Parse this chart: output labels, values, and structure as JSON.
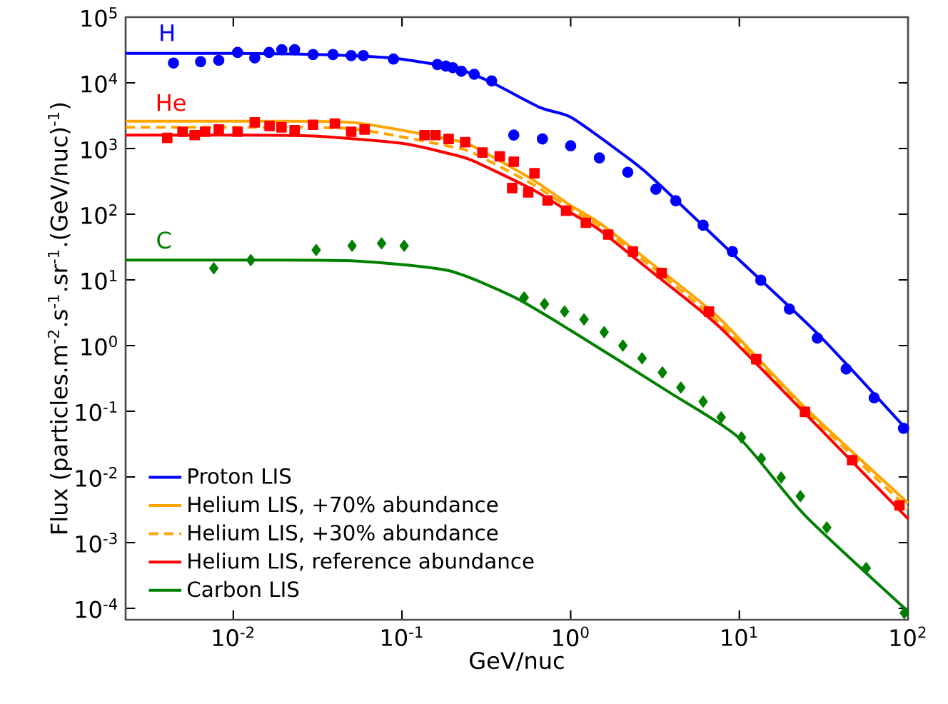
{
  "chart_data": {
    "type": "line",
    "xlabel": "GeV/nuc",
    "ylabel": "Flux (particles.m$^{-2}$.s$^{-1}$.sr$^{-1}$.(GeV/nuc)$^{-1}$)",
    "log": "xy",
    "xlim": [
      0.0023,
      100
    ],
    "ylim": [
      6.7e-05,
      100000
    ],
    "xticks": [
      {
        "value": 0.01,
        "label": "10$^{-2}$"
      },
      {
        "value": 0.1,
        "label": "10$^{-1}$"
      },
      {
        "value": 1,
        "label": "10$^{0}$"
      },
      {
        "value": 10,
        "label": "10$^{1}$"
      },
      {
        "value": 100,
        "label": "10$^{2}$"
      }
    ],
    "yticks": [
      {
        "value": 0.0001,
        "label": "10$^{-4}$"
      },
      {
        "value": 0.001,
        "label": "10$^{-3}$"
      },
      {
        "value": 0.01,
        "label": "10$^{-2}$"
      },
      {
        "value": 0.1,
        "label": "10$^{-1}$"
      },
      {
        "value": 1,
        "label": "10$^{0}$"
      },
      {
        "value": 10,
        "label": "10$^{1}$"
      },
      {
        "value": 100,
        "label": "10$^{2}$"
      },
      {
        "value": 1000,
        "label": "10$^{3}$"
      },
      {
        "value": 10000,
        "label": "10$^{4}$"
      },
      {
        "value": 100000,
        "label": "10$^{5}$"
      }
    ],
    "legend": "bottom left",
    "annotations": [
      "H",
      "He",
      "C"
    ],
    "series": [
      {
        "name": "Proton LIS",
        "color": "#0000ff",
        "marker": "none",
        "line_style": "solid",
        "x": [
          0.0023,
          0.01,
          0.03,
          0.085,
          0.2,
          0.33,
          0.66,
          1,
          2,
          3,
          10,
          30,
          100
        ],
        "values": [
          28000,
          28000,
          27000,
          24000,
          17000,
          10500,
          4200,
          3000,
          850,
          370,
          20,
          1.4,
          0.05
        ]
      },
      {
        "name": "Helium LIS, +70% abundance",
        "color": "#ffa500",
        "marker": "none",
        "line_style": "solid",
        "x": [
          0.0023,
          0.01,
          0.05,
          0.185,
          0.26,
          0.59,
          1,
          1.48,
          3,
          7.5,
          24,
          100
        ],
        "values": [
          2600,
          2600,
          2500,
          1400,
          1100,
          340,
          135,
          74,
          18,
          2.7,
          0.12,
          0.004
        ]
      },
      {
        "name": "Helium LIS, +30% abundance",
        "color": "#ffa500",
        "marker": "none",
        "line_style": "dashed",
        "x": [
          0.0023,
          0.01,
          0.05,
          0.185,
          0.26,
          0.59,
          1,
          1.48,
          3,
          7.5,
          24,
          100
        ],
        "values": [
          2100,
          2100,
          2000,
          1100,
          870,
          290,
          120,
          66,
          16,
          2.3,
          0.11,
          0.0033
        ]
      },
      {
        "name": "Helium LIS, reference abundance",
        "color": "#ff0000",
        "marker": "none",
        "line_style": "solid",
        "x": [
          0.0023,
          0.01,
          0.03,
          0.1,
          0.185,
          0.26,
          0.59,
          1,
          1.48,
          3,
          7.5,
          24,
          100
        ],
        "values": [
          1600,
          1600,
          1550,
          1200,
          850,
          660,
          240,
          105,
          58,
          13.5,
          2.0,
          0.098,
          0.0023
        ]
      },
      {
        "name": "Carbon LIS",
        "color": "#008000",
        "marker": "none",
        "line_style": "solid",
        "x": [
          0.0023,
          0.01,
          0.05,
          0.185,
          0.46,
          1,
          3.9,
          10,
          24.5,
          100
        ],
        "values": [
          20,
          20,
          19.5,
          14,
          5.5,
          1.7,
          0.19,
          0.039,
          0.0026,
          9e-05
        ]
      },
      {
        "color": "#0000ff",
        "type": "scatter",
        "marker": "circle",
        "x": [
          0.00442,
          0.0064,
          0.0082,
          0.0106,
          0.0134,
          0.0163,
          0.0194,
          0.0231,
          0.0297,
          0.039,
          0.05,
          0.059,
          0.089,
          0.162,
          0.182,
          0.2,
          0.225,
          0.268,
          0.34
        ],
        "values": [
          20000,
          21000,
          22000,
          29000,
          24000,
          29000,
          32000,
          32000,
          27000,
          27000,
          26000,
          26000,
          23000,
          19000,
          18000,
          17000,
          15000,
          13500,
          10700
        ]
      },
      {
        "color": "#0000ff",
        "type": "scatter",
        "marker": "circle",
        "x": [
          0.46,
          0.68,
          1.0,
          1.48,
          2.18,
          3.2,
          4.2,
          6.1,
          9.1,
          13.4,
          19.8,
          29,
          43,
          63,
          94
        ],
        "values": [
          1600,
          1400,
          1100,
          720,
          435,
          240,
          160,
          68,
          27,
          9.9,
          3.6,
          1.3,
          0.44,
          0.16,
          0.055
        ]
      },
      {
        "color": "#ff0000",
        "type": "scatter",
        "marker": "square",
        "x": [
          0.00406,
          0.005,
          0.0059,
          0.0068,
          0.0082,
          0.0106,
          0.0134,
          0.0164,
          0.0193,
          0.0231,
          0.0297,
          0.04,
          0.05,
          0.06,
          0.136,
          0.158,
          0.189,
          0.237,
          0.3,
          0.38,
          0.46,
          0.61
        ],
        "values": [
          1450,
          1800,
          1600,
          1800,
          1950,
          1800,
          2500,
          2200,
          2100,
          1900,
          2300,
          2400,
          1800,
          1950,
          1600,
          1600,
          1400,
          1250,
          870,
          760,
          630,
          420
        ]
      },
      {
        "color": "#ff0000",
        "type": "scatter",
        "marker": "square",
        "x": [
          0.45,
          0.56,
          0.73,
          0.94,
          1.23,
          1.67,
          2.34,
          3.46,
          6.6,
          12.6,
          24.5,
          46.6,
          89
        ],
        "values": [
          250,
          215,
          162,
          113,
          74,
          49,
          27,
          12.7,
          3.3,
          0.62,
          0.098,
          0.018,
          0.0037
        ]
      },
      {
        "color": "#008000",
        "type": "scatter",
        "marker": "diamond",
        "x": [
          0.00766,
          0.0127,
          0.031,
          0.0506,
          0.0757,
          0.103
        ],
        "values": [
          15,
          20,
          28.5,
          33,
          36,
          33
        ]
      },
      {
        "color": "#008000",
        "type": "scatter",
        "marker": "diamond",
        "x": [
          0.53,
          0.7,
          0.92,
          1.2,
          1.58,
          2.04,
          2.65,
          3.5,
          4.5,
          6.1,
          7.8,
          10.3,
          13.5,
          17.7,
          23,
          33,
          56.5,
          95
        ],
        "values": [
          5.4,
          4.3,
          3.3,
          2.5,
          1.6,
          1.0,
          0.64,
          0.39,
          0.23,
          0.14,
          0.081,
          0.04,
          0.019,
          0.0098,
          0.0051,
          0.0017,
          0.00041,
          8.5e-05
        ]
      }
    ]
  }
}
